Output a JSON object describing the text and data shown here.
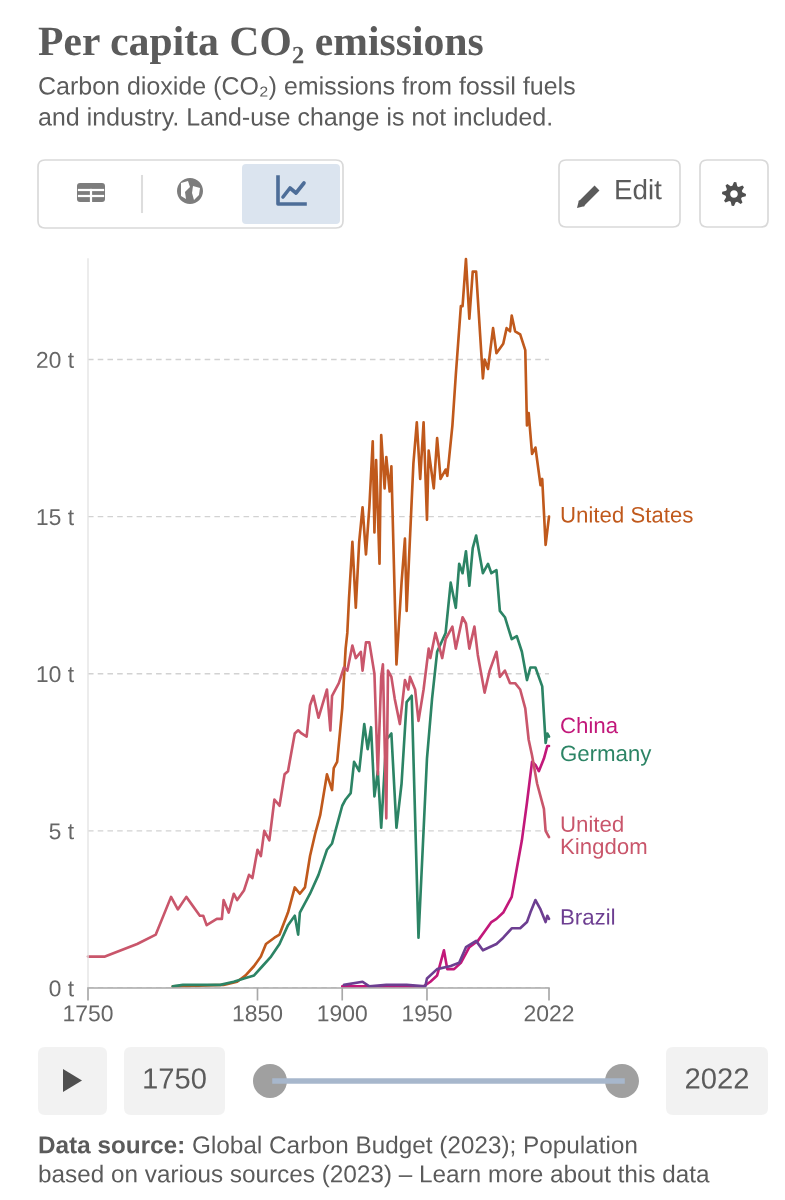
{
  "chart_data": {
    "type": "line",
    "title": "Per capita CO₂ emissions",
    "subtitle": "Carbon dioxide (CO₂) emissions from fossil fuels and industry. Land-use change is not included.",
    "xlim": [
      1750,
      2022
    ],
    "xticks": [
      1750,
      1850,
      1900,
      1950,
      2022
    ],
    "ylim": [
      0,
      23.2
    ],
    "yticks": [
      {
        "value": 0,
        "label": "0 t"
      },
      {
        "value": 5,
        "label": "5 t"
      },
      {
        "value": 10,
        "label": "10 t"
      },
      {
        "value": 15,
        "label": "15 t"
      },
      {
        "value": 20,
        "label": "20 t"
      }
    ],
    "grid": "y",
    "legend": "right",
    "series": [
      {
        "name": "United States",
        "color": "#c0591c",
        "x": [
          1800,
          1830,
          1838,
          1843,
          1848,
          1852,
          1855,
          1860,
          1863,
          1868,
          1872,
          1875,
          1878,
          1881,
          1884,
          1887,
          1891,
          1894,
          1895,
          1897,
          1900,
          1902,
          1903,
          1904,
          1906,
          1908,
          1910,
          1912,
          1914,
          1916,
          1918,
          1919,
          1920,
          1922,
          1923,
          1925,
          1926,
          1928,
          1929,
          1932,
          1935,
          1937,
          1938,
          1942,
          1944,
          1946,
          1948,
          1950,
          1951,
          1954,
          1956,
          1958,
          1961,
          1962,
          1965,
          1967,
          1970,
          1971,
          1973,
          1975,
          1977,
          1979,
          1983,
          1984,
          1986,
          1989,
          1991,
          1995,
          1997,
          1999,
          2000,
          2002,
          2005,
          2008,
          2009,
          2010,
          2012,
          2014,
          2017,
          2018,
          2020,
          2022
        ],
        "values": [
          0.05,
          0.1,
          0.2,
          0.4,
          0.7,
          1.0,
          1.4,
          1.6,
          1.7,
          2.4,
          3.2,
          3.0,
          3.2,
          4.2,
          4.9,
          5.5,
          6.8,
          6.3,
          7.0,
          7.2,
          8.9,
          10.8,
          11.3,
          12.4,
          14.2,
          12.1,
          14.2,
          15.3,
          13.8,
          15.3,
          17.4,
          14.5,
          16.8,
          13.5,
          17.6,
          15.9,
          16.9,
          15.8,
          16.6,
          10.3,
          12.9,
          14.3,
          12.0,
          16.7,
          18.0,
          16.2,
          18.0,
          14.9,
          17.1,
          15.9,
          17.5,
          16.2,
          16.5,
          16.3,
          17.9,
          19.5,
          21.7,
          21.7,
          23.2,
          21.3,
          22.8,
          22.8,
          19.4,
          20.0,
          19.7,
          21.0,
          20.2,
          20.5,
          21.0,
          20.9,
          21.4,
          20.9,
          20.8,
          20.3,
          17.9,
          18.3,
          17.0,
          17.2,
          16.0,
          16.2,
          14.1,
          15.0
        ]
      },
      {
        "name": "China",
        "color": "#c2187a",
        "x": [
          1900,
          1948,
          1952,
          1956,
          1958,
          1960,
          1962,
          1966,
          1970,
          1975,
          1980,
          1984,
          1988,
          1991,
          1995,
          1998,
          2000,
          2003,
          2006,
          2009,
          2012,
          2014,
          2016,
          2019,
          2021,
          2022
        ],
        "values": [
          0.05,
          0.05,
          0.2,
          0.4,
          0.8,
          1.2,
          0.6,
          0.6,
          0.8,
          1.3,
          1.5,
          1.8,
          2.1,
          2.2,
          2.4,
          2.7,
          2.9,
          3.8,
          4.7,
          5.9,
          7.2,
          7.1,
          6.9,
          7.3,
          7.7,
          7.7
        ]
      },
      {
        "name": "Germany",
        "color": "#2c8465",
        "x": [
          1800,
          1806,
          1816,
          1828,
          1836,
          1842,
          1848,
          1853,
          1858,
          1863,
          1868,
          1872,
          1874,
          1875,
          1881,
          1886,
          1891,
          1894,
          1900,
          1902,
          1905,
          1907,
          1910,
          1913,
          1915,
          1917,
          1919,
          1921,
          1923,
          1926,
          1929,
          1932,
          1935,
          1938,
          1941,
          1945,
          1950,
          1953,
          1956,
          1961,
          1964,
          1967,
          1969,
          1971,
          1973,
          1975,
          1977,
          1979,
          1983,
          1986,
          1988,
          1991,
          1993,
          1996,
          2000,
          2003,
          2006,
          2009,
          2011,
          2014,
          2018,
          2020,
          2021,
          2022
        ],
        "values": [
          0.05,
          0.1,
          0.1,
          0.1,
          0.2,
          0.3,
          0.4,
          0.7,
          1.0,
          1.4,
          2.0,
          2.3,
          1.7,
          2.4,
          3.0,
          3.6,
          4.4,
          4.6,
          5.8,
          6.0,
          6.2,
          7.2,
          6.9,
          8.4,
          7.6,
          8.3,
          6.1,
          6.9,
          5.1,
          7.9,
          8.1,
          5.1,
          6.5,
          9.1,
          9.3,
          1.6,
          7.3,
          9.2,
          10.7,
          11.3,
          12.9,
          12.1,
          13.5,
          13.2,
          13.9,
          12.8,
          14.0,
          14.4,
          13.2,
          13.5,
          13.2,
          13.3,
          12.0,
          11.8,
          11.1,
          11.2,
          10.7,
          9.8,
          10.2,
          10.2,
          9.6,
          7.8,
          8.1,
          8.0
        ]
      },
      {
        "name": "United Kingdom",
        "color": "#c9566b",
        "x": [
          1750,
          1760,
          1779,
          1790,
          1799,
          1803,
          1808,
          1816,
          1818,
          1820,
          1826,
          1829,
          1830,
          1833,
          1836,
          1838,
          1842,
          1845,
          1847,
          1850,
          1852,
          1854,
          1857,
          1860,
          1863,
          1866,
          1868,
          1869,
          1872,
          1874,
          1876,
          1879,
          1881,
          1883,
          1886,
          1891,
          1893,
          1894,
          1898,
          1901,
          1903,
          1906,
          1908,
          1911,
          1912,
          1914,
          1916,
          1919,
          1921,
          1923,
          1924,
          1926,
          1927,
          1929,
          1931,
          1934,
          1937,
          1939,
          1940,
          1943,
          1945,
          1948,
          1951,
          1952,
          1955,
          1959,
          1961,
          1965,
          1967,
          1971,
          1973,
          1975,
          1978,
          1980,
          1984,
          1987,
          1991,
          1993,
          1996,
          1999,
          2002,
          2005,
          2008,
          2010,
          2012,
          2015,
          2019,
          2020,
          2022
        ],
        "values": [
          1.0,
          1.0,
          1.4,
          1.7,
          2.9,
          2.5,
          2.9,
          2.3,
          2.3,
          2.0,
          2.2,
          2.2,
          2.8,
          2.4,
          3.0,
          2.8,
          3.1,
          3.6,
          3.5,
          4.4,
          4.2,
          5.0,
          4.7,
          6.0,
          5.8,
          6.8,
          6.9,
          7.2,
          8.1,
          8.2,
          8.1,
          8.0,
          9.0,
          9.3,
          8.6,
          9.5,
          8.2,
          9.3,
          9.7,
          10.2,
          10.1,
          10.9,
          10.5,
          10.7,
          10.1,
          11.0,
          11.0,
          10.0,
          6.8,
          9.9,
          10.3,
          5.4,
          10.1,
          9.9,
          9.2,
          8.4,
          9.8,
          9.5,
          9.9,
          9.5,
          8.5,
          9.5,
          10.8,
          10.5,
          11.3,
          10.5,
          11.1,
          11.5,
          10.8,
          11.8,
          11.6,
          10.8,
          11.5,
          10.6,
          9.4,
          10.1,
          10.7,
          9.9,
          10.1,
          9.7,
          9.7,
          9.5,
          8.9,
          7.9,
          7.4,
          6.5,
          5.7,
          5.0,
          4.8
        ]
      },
      {
        "name": "Brazil",
        "color": "#6d3e91",
        "x": [
          1901,
          1912,
          1916,
          1926,
          1938,
          1949,
          1950,
          1956,
          1964,
          1969,
          1973,
          1979,
          1983,
          1991,
          1995,
          2000,
          2005,
          2009,
          2011,
          2014,
          2017,
          2020,
          2021,
          2022
        ],
        "values": [
          0.1,
          0.2,
          0.05,
          0.1,
          0.1,
          0.05,
          0.3,
          0.6,
          0.7,
          0.8,
          1.3,
          1.5,
          1.2,
          1.4,
          1.6,
          1.9,
          1.9,
          2.1,
          2.4,
          2.8,
          2.5,
          2.1,
          2.3,
          2.2
        ]
      }
    ],
    "annotations": [
      "Edit",
      "1750",
      "2022",
      "Data source: Global Carbon Budget (2023); Population based on various sources (2023) – Learn more about this data"
    ]
  }
}
